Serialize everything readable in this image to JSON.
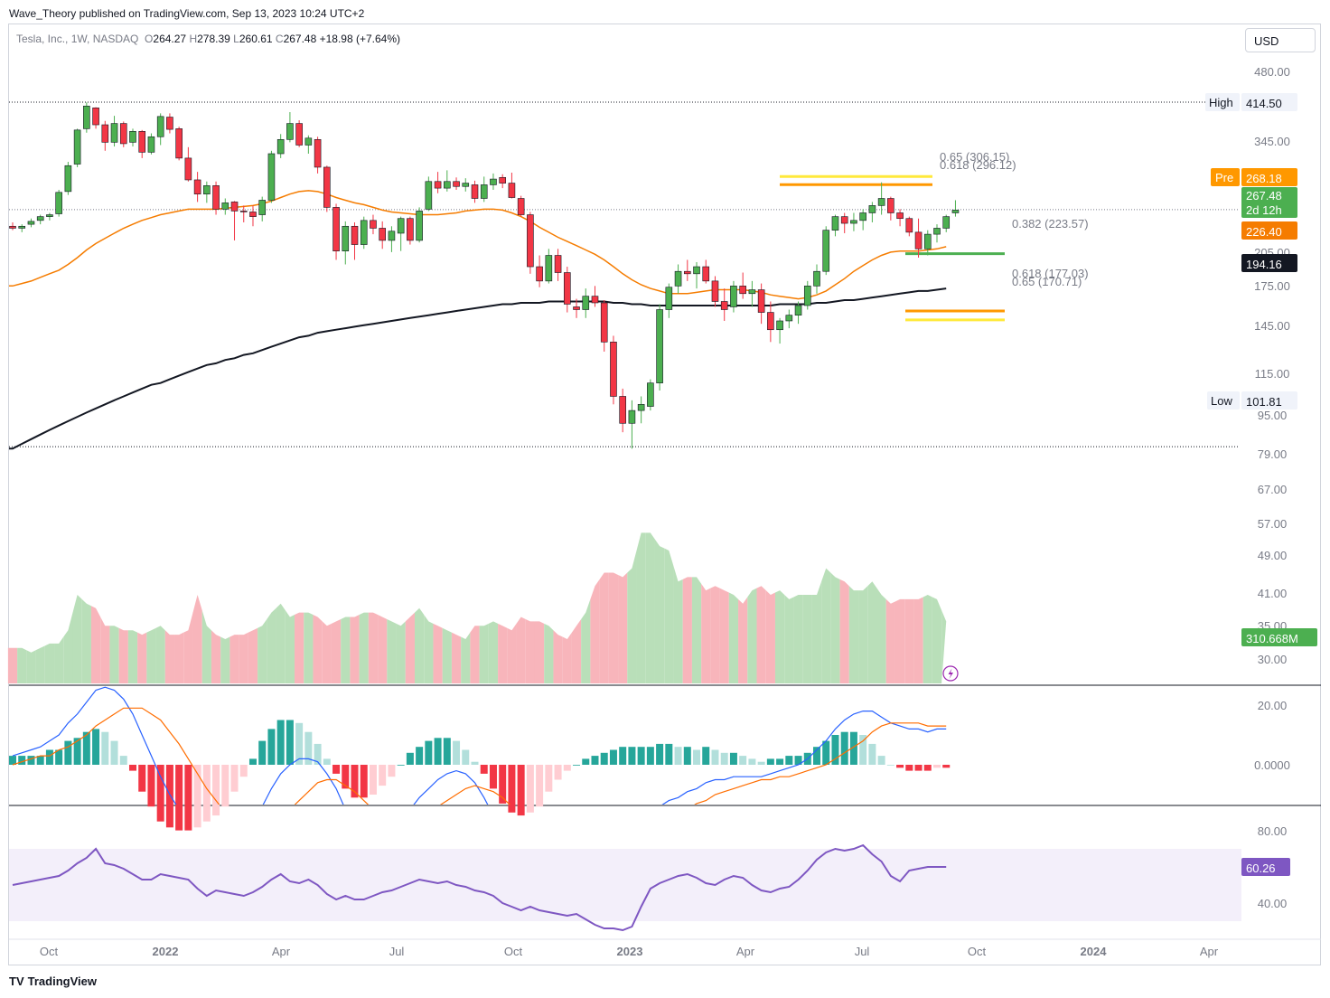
{
  "header": {
    "publisher": "Wave_Theory published on TradingView.com, Sep 13, 2023 10:24 UTC+2",
    "symbol": "Tesla, Inc., 1W, NASDAQ",
    "open_label": "O",
    "open": "264.27",
    "high_label": "H",
    "high": "278.39",
    "low_label": "L",
    "low": "260.61",
    "close_label": "C",
    "close": "267.48",
    "change": "+18.98 (+7.64%)",
    "currency": "USD"
  },
  "price_axis": {
    "ticks": [
      "480.00",
      "345.00",
      "205.00",
      "175.00",
      "145.00",
      "115.00",
      "95.00",
      "79.00",
      "67.00",
      "57.00",
      "49.00",
      "41.00",
      "35.00",
      "30.00"
    ],
    "high_label": "High",
    "high_value": "414.50",
    "low_label": "Low",
    "low_value": "101.81",
    "pre_label": "Pre",
    "pre_value": "268.18",
    "last_value": "267.48",
    "last_countdown": "2d 12h",
    "ma_short_value": "226.40",
    "ma_long_value": "194.16",
    "volume_value": "310.668M"
  },
  "macd_axis": {
    "ticks": [
      "20.00",
      "0.0000"
    ]
  },
  "rsi_axis": {
    "ticks": [
      "80.00",
      "40.00"
    ],
    "value": "60.26"
  },
  "time_axis": [
    "Oct",
    "2022",
    "Apr",
    "Jul",
    "Oct",
    "2023",
    "Apr",
    "Jul",
    "Oct",
    "2024",
    "Apr"
  ],
  "fib_levels": [
    {
      "label": "0.65 (306.15)",
      "color": "#ffe93b"
    },
    {
      "label": "0.618 (296.12)",
      "color": "#ff9800"
    },
    {
      "label": "0.382 (223.57)",
      "color": "#4caf50"
    },
    {
      "label": "0.618 (177.03)",
      "color": "#ff9800"
    },
    {
      "label": "0.65 (170.71)",
      "color": "#ffe93b"
    }
  ],
  "colors": {
    "up": "#26a69a",
    "up_candle": "#4caf50",
    "down": "#f23645",
    "ma_short": "#f57c00",
    "ma_long": "#131722",
    "macd_line": "#2962ff",
    "signal_line": "#ff6d00",
    "rsi": "#7e57c2",
    "vol_up": "#b9dfb9",
    "vol_down": "#f8b5bb"
  },
  "footer": {
    "brand": "TradingView"
  },
  "chart_data": {
    "type": "candlestick",
    "title": "Tesla, Inc., 1W, NASDAQ",
    "x_start": "2021-09-13",
    "interval": "1W",
    "ohlc": [
      [
        250,
        254,
        246,
        248
      ],
      [
        248,
        252,
        244,
        250
      ],
      [
        252,
        258,
        249,
        255
      ],
      [
        256,
        262,
        252,
        260
      ],
      [
        260,
        264,
        256,
        262
      ],
      [
        263,
        290,
        260,
        287
      ],
      [
        288,
        325,
        284,
        320
      ],
      [
        322,
        372,
        318,
        370
      ],
      [
        372,
        414,
        366,
        408
      ],
      [
        405,
        406,
        372,
        378
      ],
      [
        378,
        384,
        340,
        352
      ],
      [
        352,
        392,
        346,
        380
      ],
      [
        380,
        383,
        345,
        350
      ],
      [
        352,
        372,
        346,
        368
      ],
      [
        368,
        370,
        330,
        338
      ],
      [
        338,
        365,
        335,
        360
      ],
      [
        360,
        396,
        348,
        391
      ],
      [
        390,
        396,
        365,
        371
      ],
      [
        372,
        375,
        327,
        330
      ],
      [
        330,
        345,
        300,
        302
      ],
      [
        302,
        312,
        276,
        285
      ],
      [
        285,
        300,
        275,
        295
      ],
      [
        295,
        300,
        262,
        268
      ],
      [
        268,
        280,
        262,
        275
      ],
      [
        276,
        277,
        236,
        266
      ],
      [
        266,
        272,
        254,
        265
      ],
      [
        265,
        272,
        250,
        260
      ],
      [
        262,
        282,
        255,
        278
      ],
      [
        278,
        340,
        275,
        336
      ],
      [
        336,
        364,
        330,
        356
      ],
      [
        356,
        398,
        352,
        380
      ],
      [
        380,
        385,
        345,
        348
      ],
      [
        348,
        362,
        336,
        358
      ],
      [
        356,
        360,
        310,
        318
      ],
      [
        318,
        320,
        265,
        270
      ],
      [
        270,
        274,
        218,
        226
      ],
      [
        226,
        255,
        214,
        250
      ],
      [
        250,
        254,
        218,
        232
      ],
      [
        232,
        260,
        228,
        256
      ],
      [
        256,
        262,
        242,
        248
      ],
      [
        248,
        255,
        228,
        236
      ],
      [
        236,
        250,
        225,
        245
      ],
      [
        243,
        260,
        226,
        258
      ],
      [
        258,
        260,
        232,
        236
      ],
      [
        236,
        270,
        234,
        266
      ],
      [
        268,
        306,
        266,
        300
      ],
      [
        300,
        312,
        286,
        292
      ],
      [
        292,
        314,
        288,
        300
      ],
      [
        300,
        305,
        290,
        294
      ],
      [
        294,
        304,
        288,
        298
      ],
      [
        296,
        301,
        275,
        280
      ],
      [
        280,
        306,
        276,
        296
      ],
      [
        296,
        310,
        290,
        303
      ],
      [
        305,
        309,
        292,
        298
      ],
      [
        298,
        311,
        280,
        281
      ],
      [
        280,
        283,
        260,
        262
      ],
      [
        262,
        265,
        206,
        212
      ],
      [
        212,
        222,
        195,
        200
      ],
      [
        200,
        228,
        198,
        222
      ],
      [
        222,
        228,
        200,
        207
      ],
      [
        207,
        212,
        176,
        182
      ],
      [
        180,
        186,
        172,
        178
      ],
      [
        178,
        194,
        172,
        188
      ],
      [
        188,
        196,
        180,
        183
      ],
      [
        183,
        185,
        150,
        156
      ],
      [
        156,
        160,
        121,
        125
      ],
      [
        125,
        129,
        108,
        112
      ],
      [
        112,
        123,
        101,
        118
      ],
      [
        118,
        125,
        112,
        121
      ],
      [
        120,
        134,
        118,
        132
      ],
      [
        132,
        182,
        128,
        178
      ],
      [
        178,
        198,
        172,
        195
      ],
      [
        196,
        214,
        190,
        208
      ],
      [
        208,
        218,
        200,
        206
      ],
      [
        206,
        216,
        194,
        212
      ],
      [
        212,
        218,
        198,
        200
      ],
      [
        200,
        204,
        180,
        184
      ],
      [
        184,
        194,
        170,
        178
      ],
      [
        180,
        200,
        176,
        196
      ],
      [
        196,
        207,
        186,
        190
      ],
      [
        190,
        200,
        180,
        193
      ],
      [
        193,
        198,
        168,
        176
      ],
      [
        176,
        184,
        156,
        164
      ],
      [
        164,
        172,
        155,
        170
      ],
      [
        170,
        178,
        165,
        174
      ],
      [
        174,
        184,
        168,
        181
      ],
      [
        181,
        200,
        178,
        196
      ],
      [
        196,
        214,
        190,
        208
      ],
      [
        208,
        250,
        205,
        246
      ],
      [
        246,
        262,
        240,
        260
      ],
      [
        260,
        264,
        243,
        253
      ],
      [
        253,
        264,
        245,
        256
      ],
      [
        256,
        268,
        246,
        264
      ],
      [
        264,
        276,
        254,
        272
      ],
      [
        272,
        299,
        262,
        280
      ],
      [
        280,
        282,
        256,
        264
      ],
      [
        264,
        268,
        250,
        258
      ],
      [
        258,
        260,
        240,
        244
      ],
      [
        244,
        258,
        220,
        228
      ],
      [
        228,
        246,
        222,
        242
      ],
      [
        242,
        252,
        234,
        248
      ],
      [
        248,
        262,
        244,
        260
      ],
      [
        264,
        278,
        260,
        267
      ]
    ],
    "ma_short": [
      196,
      198,
      200,
      203,
      206,
      209,
      214,
      220,
      227,
      233,
      238,
      243,
      248,
      252,
      256,
      259,
      262,
      264,
      266,
      268,
      268,
      268,
      268,
      269,
      270,
      271,
      272,
      274,
      277,
      281,
      285,
      288,
      289,
      288,
      285,
      281,
      278,
      275,
      273,
      270,
      267,
      265,
      264,
      263,
      262,
      262,
      262,
      263,
      264,
      266,
      267,
      268,
      268,
      267,
      264,
      260,
      255,
      249,
      244,
      239,
      235,
      231,
      227,
      223,
      218,
      212,
      206,
      201,
      197,
      194,
      192,
      190,
      190,
      190,
      191,
      192,
      193,
      193,
      193,
      193,
      192,
      191,
      189,
      188,
      187,
      186,
      187,
      189,
      192,
      197,
      202,
      208,
      213,
      218,
      222,
      225,
      226,
      226,
      226,
      227,
      228,
      230
    ],
    "ma_long": [
      101,
      103,
      105,
      107,
      109,
      111,
      113,
      115,
      117,
      119,
      121,
      123,
      125,
      127,
      129,
      131,
      132,
      134,
      136,
      138,
      140,
      142,
      143,
      145,
      146,
      148,
      149,
      151,
      153,
      155,
      157,
      159,
      160,
      162,
      163,
      164,
      165,
      166,
      167,
      168,
      169,
      170,
      171,
      172,
      173,
      174,
      175,
      176,
      177,
      178,
      179,
      180,
      181,
      182,
      182,
      183,
      183,
      183,
      184,
      184,
      184,
      184,
      184,
      184,
      184,
      183,
      183,
      182,
      182,
      181,
      181,
      181,
      181,
      181,
      181,
      181,
      181,
      181,
      181,
      181,
      181,
      181,
      181,
      182,
      182,
      182,
      182,
      183,
      183,
      184,
      185,
      185,
      186,
      187,
      188,
      189,
      190,
      191,
      192,
      192,
      193,
      194
    ],
    "volume": [
      30,
      30,
      29,
      30,
      31,
      31,
      34,
      42,
      40,
      39,
      35,
      35,
      34,
      34,
      33,
      34,
      35,
      33,
      33,
      34,
      42,
      35,
      33,
      32,
      33,
      33,
      34,
      35,
      38,
      40,
      37,
      38,
      38,
      37,
      35,
      36,
      37,
      37,
      38,
      38,
      37,
      36,
      35,
      37,
      39,
      36,
      35,
      34,
      33,
      32,
      35,
      35,
      36,
      35,
      34,
      37,
      36,
      36,
      35,
      33,
      32,
      35,
      38,
      44,
      47,
      47,
      46,
      48,
      56,
      56,
      53,
      52,
      45,
      46,
      46,
      43,
      44,
      43,
      42,
      40,
      43,
      44,
      42,
      43,
      41,
      42,
      42,
      42,
      48,
      46,
      45,
      43,
      43,
      45,
      42,
      40,
      41,
      41,
      41,
      42,
      41,
      36
    ],
    "macd": [
      3,
      4,
      5,
      6,
      8,
      10,
      14,
      17,
      21,
      25,
      26,
      25,
      22,
      17,
      10,
      3,
      -4,
      -10,
      -15,
      -20,
      -24,
      -27,
      -29,
      -30,
      -28,
      -25,
      -20,
      -14,
      -8,
      -3,
      0,
      2,
      2,
      1,
      -3,
      -8,
      -15,
      -20,
      -23,
      -25,
      -24,
      -22,
      -19,
      -15,
      -11,
      -8,
      -5,
      -3,
      -2,
      -3,
      -6,
      -11,
      -17,
      -24,
      -30,
      -35,
      -38,
      -39,
      -37,
      -35,
      -33,
      -32,
      -30,
      -28,
      -26,
      -24,
      -22,
      -20,
      -19,
      -17,
      -14,
      -12,
      -11,
      -9,
      -8,
      -6,
      -5,
      -5,
      -4,
      -4,
      -4,
      -4,
      -3,
      -2,
      -1,
      0,
      2,
      5,
      8,
      12,
      15,
      17,
      18,
      18,
      16,
      14,
      13,
      12,
      12,
      11,
      12,
      12
    ],
    "signal": [
      0,
      1,
      2,
      3,
      3,
      5,
      6,
      8,
      10,
      13,
      15,
      17,
      19,
      19,
      19,
      17,
      15,
      11,
      7,
      2,
      -3,
      -8,
      -12,
      -16,
      -19,
      -21,
      -22,
      -22,
      -20,
      -18,
      -15,
      -12,
      -9,
      -6,
      -5,
      -5,
      -7,
      -9,
      -12,
      -15,
      -17,
      -18,
      -19,
      -19,
      -17,
      -16,
      -14,
      -12,
      -10,
      -8,
      -7,
      -8,
      -9,
      -11,
      -14,
      -18,
      -22,
      -25,
      -28,
      -30,
      -31,
      -32,
      -32,
      -31,
      -30,
      -29,
      -28,
      -26,
      -25,
      -23,
      -21,
      -19,
      -17,
      -15,
      -13,
      -12,
      -10,
      -9,
      -8,
      -7,
      -6,
      -5,
      -5,
      -4,
      -4,
      -3,
      -2,
      -1,
      0,
      2,
      4,
      6,
      8,
      11,
      13,
      14,
      14,
      14,
      14,
      13,
      13,
      13
    ],
    "histogram": [
      3,
      3,
      3,
      3,
      5,
      5,
      8,
      9,
      11,
      12,
      11,
      8,
      3,
      -2,
      -9,
      -14,
      -19,
      -21,
      -22,
      -22,
      -21,
      -19,
      -17,
      -14,
      -9,
      -4,
      2,
      8,
      12,
      15,
      15,
      14,
      11,
      7,
      2,
      -3,
      -8,
      -11,
      -11,
      -10,
      -7,
      -4,
      0,
      4,
      6,
      8,
      9,
      9,
      8,
      5,
      1,
      -3,
      -8,
      -13,
      -16,
      -17,
      -16,
      -14,
      -9,
      -5,
      -2,
      0,
      2,
      3,
      4,
      5,
      6,
      6,
      6,
      6,
      7,
      7,
      6,
      6,
      5,
      6,
      5,
      4,
      4,
      3,
      2,
      1,
      2,
      2,
      3,
      3,
      4,
      6,
      8,
      10,
      11,
      11,
      10,
      7,
      3,
      0,
      -1,
      -2,
      -2,
      -2,
      -1,
      -1
    ],
    "rsi": [
      50,
      51,
      52,
      53,
      54,
      55,
      58,
      62,
      65,
      70,
      62,
      61,
      59,
      56,
      53,
      53,
      56,
      55,
      54,
      53,
      48,
      44,
      47,
      46,
      45,
      44,
      46,
      49,
      53,
      56,
      52,
      51,
      53,
      50,
      45,
      42,
      44,
      42,
      42,
      44,
      46,
      47,
      49,
      51,
      53,
      52,
      51,
      52,
      50,
      49,
      47,
      46,
      44,
      40,
      38,
      36,
      38,
      36,
      35,
      34,
      33,
      34,
      31,
      28,
      26,
      26,
      25,
      27,
      38,
      48,
      51,
      53,
      55,
      56,
      54,
      51,
      50,
      53,
      55,
      54,
      50,
      47,
      46,
      48,
      49,
      53,
      58,
      64,
      68,
      70,
      69,
      70,
      72,
      67,
      63,
      55,
      52,
      58,
      59,
      60,
      60,
      60
    ],
    "price_ylim": [
      95,
      480
    ],
    "price_scale": "log",
    "macd_ylim": [
      -40,
      40
    ],
    "rsi_ylim": [
      0,
      100
    ]
  }
}
